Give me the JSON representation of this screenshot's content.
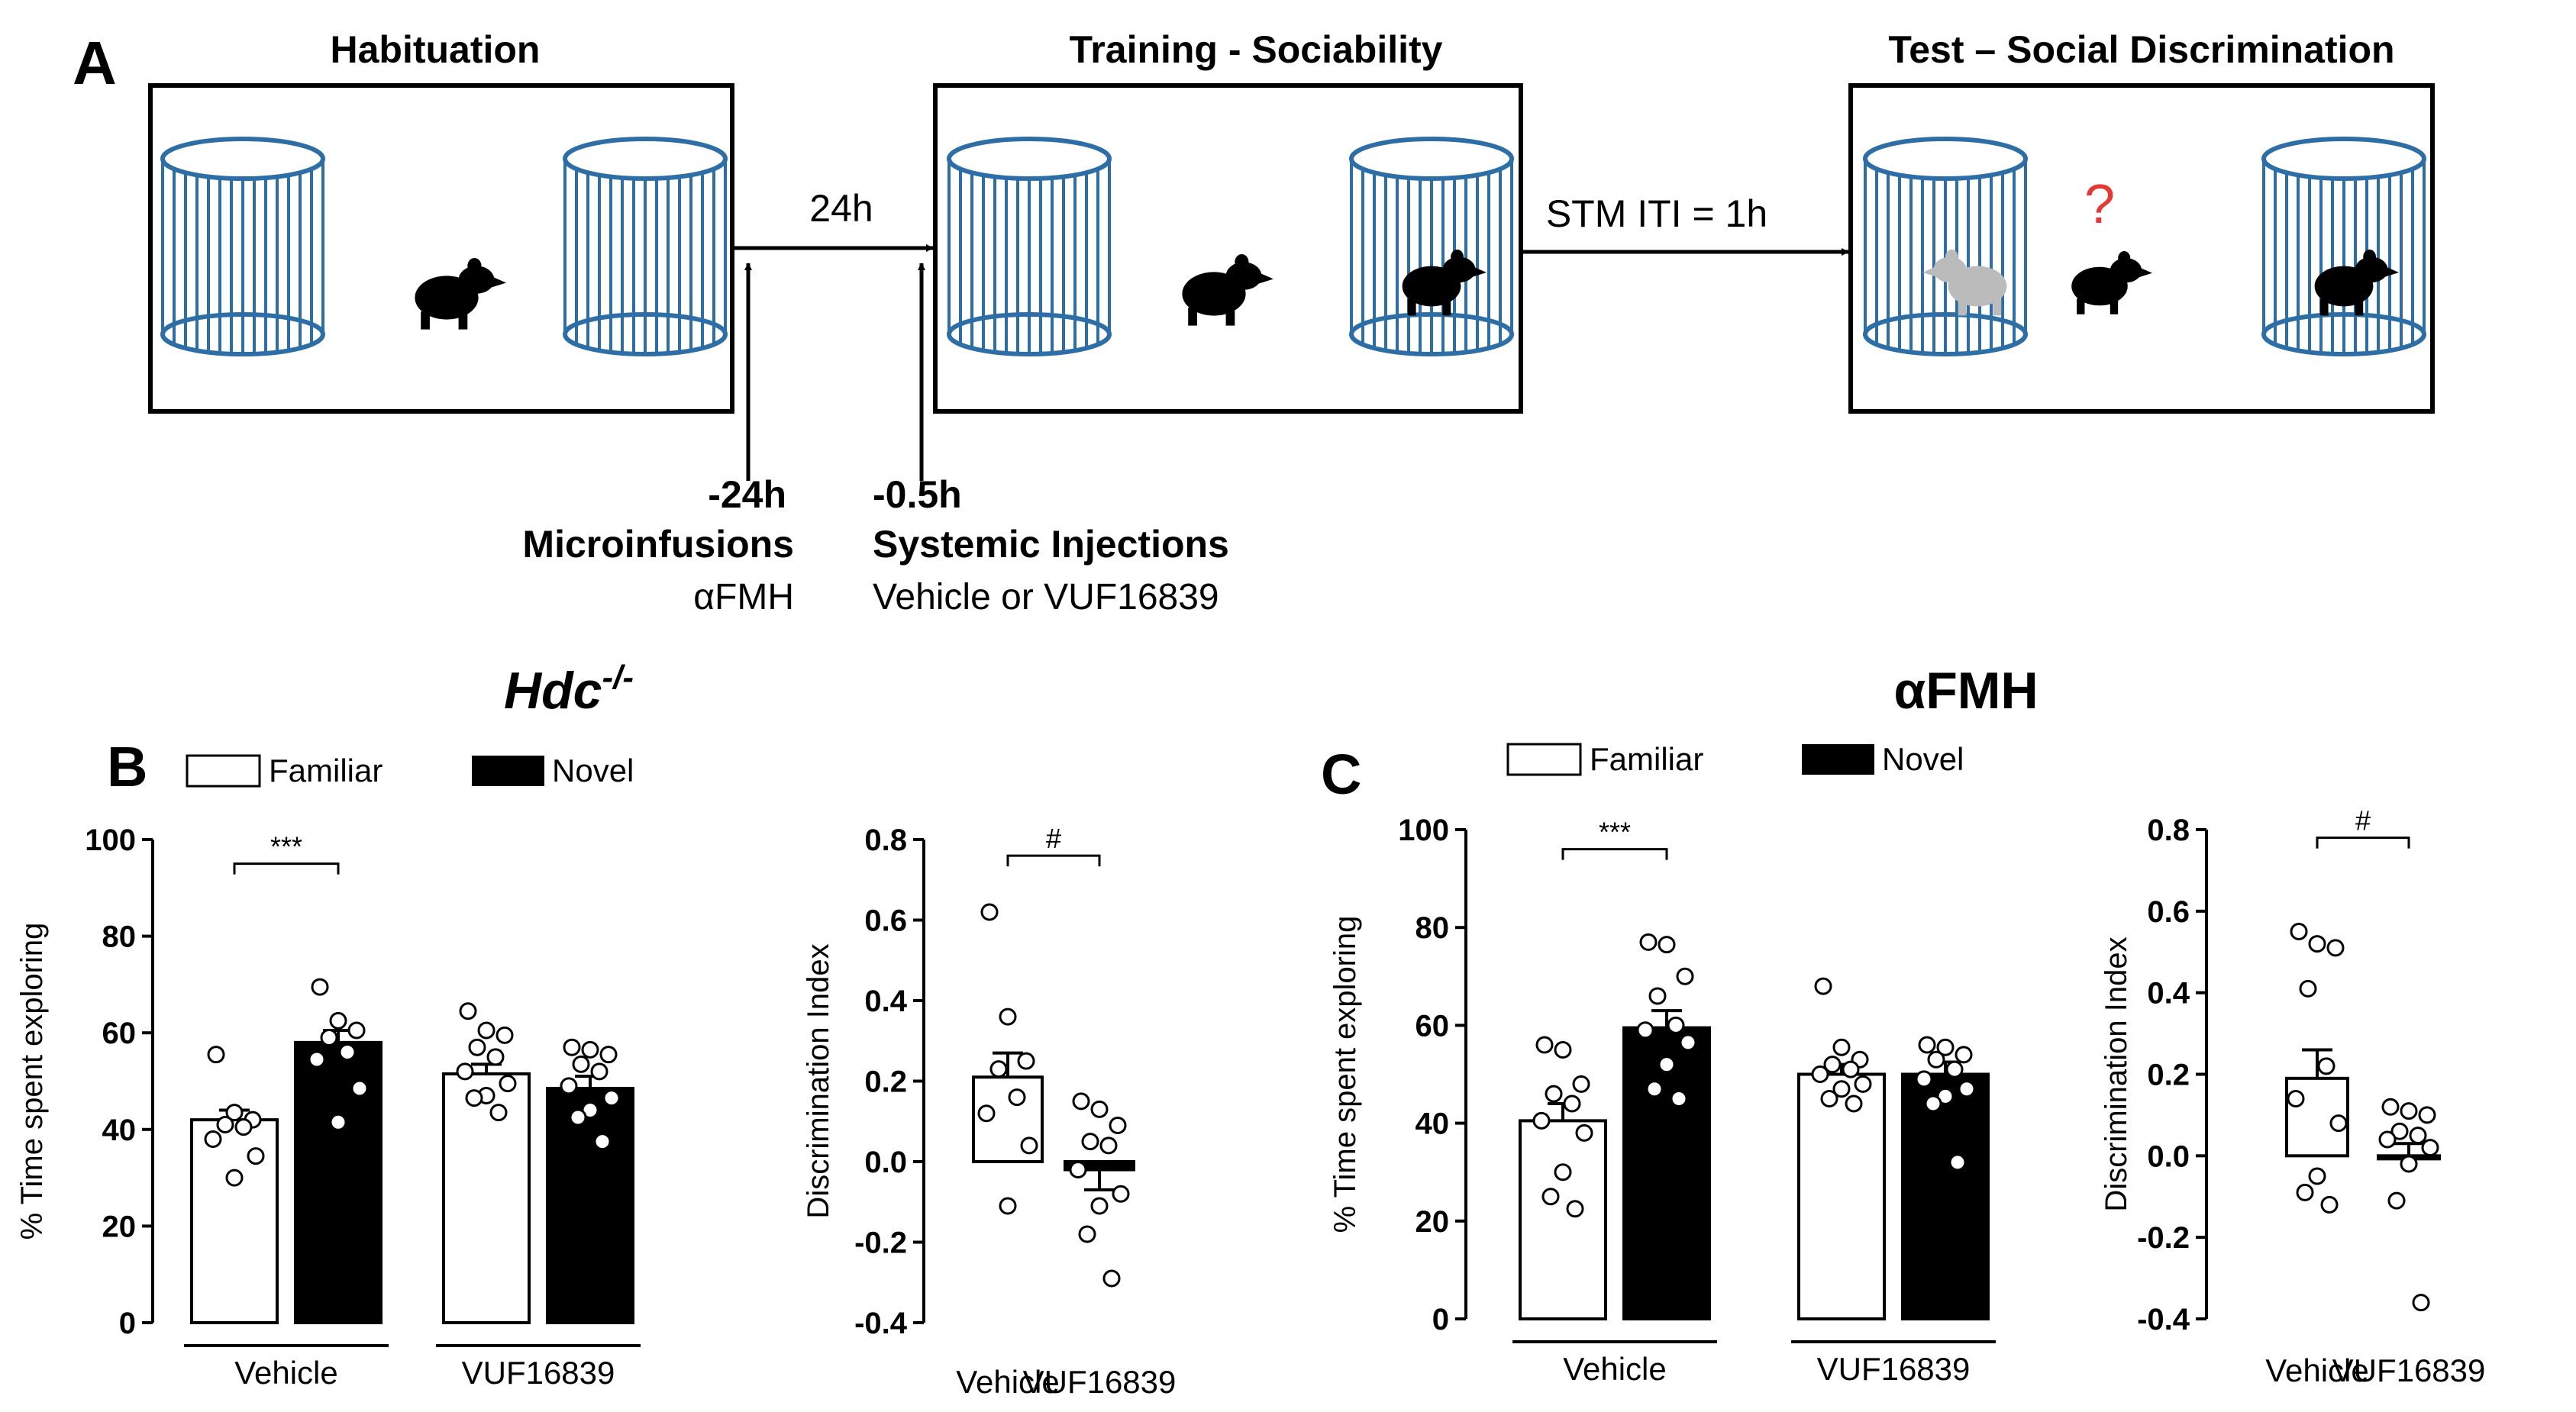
{
  "panels": {
    "a": {
      "letter": "A",
      "stages": [
        {
          "title": "Habituation"
        },
        {
          "title": "Training - Sociability"
        },
        {
          "title": "Test – Social Discrimination"
        }
      ],
      "arrow1_label": "24h",
      "arrow2_label": "STM ITI  = 1h",
      "question_mark": "?",
      "timepoint1": {
        "time": "-24h",
        "procedure": "Microinfusions",
        "drug": "αFMH"
      },
      "timepoint2": {
        "time": "-0.5h",
        "procedure": "Systemic Injections",
        "drug": "Vehicle or VUF16839"
      }
    },
    "b": {
      "letter": "B",
      "title": "Hdc",
      "title_sup": "-/-"
    },
    "c": {
      "letter": "C",
      "title": "αFMH"
    }
  },
  "legend": {
    "familiar": "Familiar",
    "novel": "Novel"
  },
  "colors": {
    "cage": "#2e6ea6",
    "mouse": "#000000",
    "mouse_grey": "#bbbbbb",
    "question": "#e53935"
  },
  "chart_data": [
    {
      "id": "b-time",
      "type": "bar",
      "panel": "B",
      "ylabel": "% Time spent exploring",
      "ylim": [
        0,
        100
      ],
      "yticks": [
        "0",
        "20",
        "40",
        "60",
        "80",
        "100"
      ],
      "groups": [
        "Vehicle",
        "VUF16839"
      ],
      "series": [
        {
          "name": "Familiar",
          "values": [
            42,
            51.5
          ],
          "sem": [
            2,
            2
          ],
          "points": [
            [
              55.5,
              43.5,
              42,
              41,
              40.5,
              38,
              34.5,
              30
            ],
            [
              64.5,
              60.5,
              59.5,
              57,
              55,
              52,
              49.5,
              47,
              46.5,
              43.5
            ]
          ]
        },
        {
          "name": "Novel",
          "values": [
            58,
            48.5
          ],
          "sem": [
            2.5,
            2.5
          ],
          "points": [
            [
              69.5,
              62.5,
              60.5,
              59,
              56,
              54.5,
              48.5,
              41.5
            ],
            [
              57,
              56.5,
              55.5,
              53.5,
              52,
              49,
              46.5,
              44,
              42.5,
              37.5
            ]
          ]
        }
      ],
      "significance": "***"
    },
    {
      "id": "b-di",
      "type": "bar",
      "panel": "B",
      "ylabel": "Discrimination Index",
      "ylim": [
        -0.4,
        0.8
      ],
      "yticks": [
        "-0.4",
        "-0.2",
        "0.0",
        "0.2",
        "0.4",
        "0.6",
        "0.8"
      ],
      "categories": [
        "Vehicle",
        "VUF16839"
      ],
      "values": [
        0.21,
        -0.02
      ],
      "sem": [
        0.06,
        0.05
      ],
      "points": [
        [
          0.62,
          0.36,
          0.25,
          0.23,
          0.16,
          0.12,
          0.04,
          -0.11
        ],
        [
          0.15,
          0.13,
          0.09,
          0.05,
          0.04,
          -0.02,
          -0.08,
          -0.11,
          -0.18,
          -0.29
        ]
      ],
      "significance": "#"
    },
    {
      "id": "c-time",
      "type": "bar",
      "panel": "C",
      "ylabel": "% Time spent exploring",
      "ylim": [
        0,
        100
      ],
      "yticks": [
        "0",
        "20",
        "40",
        "60",
        "80",
        "100"
      ],
      "groups": [
        "Vehicle",
        "VUF16839"
      ],
      "series": [
        {
          "name": "Familiar",
          "values": [
            40.5,
            50
          ],
          "sem": [
            3.5,
            2
          ],
          "points": [
            [
              56,
              55,
              48,
              46,
              44,
              40.5,
              38,
              30,
              25,
              22.5
            ],
            [
              68,
              55.5,
              53,
              52,
              51,
              50,
              48,
              47,
              45,
              44
            ]
          ]
        },
        {
          "name": "Novel",
          "values": [
            59.5,
            50
          ],
          "sem": [
            3.5,
            2.5
          ],
          "points": [
            [
              77,
              76.5,
              70,
              66,
              60,
              59,
              56.5,
              52,
              47,
              45
            ],
            [
              56,
              55.5,
              54,
              53,
              51,
              49,
              47,
              45.5,
              44,
              32
            ]
          ]
        }
      ],
      "significance": "***"
    },
    {
      "id": "c-di",
      "type": "bar",
      "panel": "C",
      "ylabel": "Discrimination Index",
      "ylim": [
        -0.4,
        0.8
      ],
      "yticks": [
        "-0.4",
        "-0.2",
        "0.0",
        "0.2",
        "0.4",
        "0.6",
        "0.8"
      ],
      "categories": [
        "Vehicle",
        "VUF16839"
      ],
      "values": [
        0.19,
        0.0
      ],
      "sem": [
        0.07,
        0.03
      ],
      "points": [
        [
          0.55,
          0.52,
          0.51,
          0.41,
          0.22,
          0.14,
          0.08,
          -0.05,
          -0.09,
          -0.12
        ],
        [
          0.12,
          0.11,
          0.1,
          0.06,
          0.05,
          0.04,
          0.02,
          -0.02,
          -0.11,
          -0.36
        ]
      ],
      "significance": "#"
    }
  ]
}
